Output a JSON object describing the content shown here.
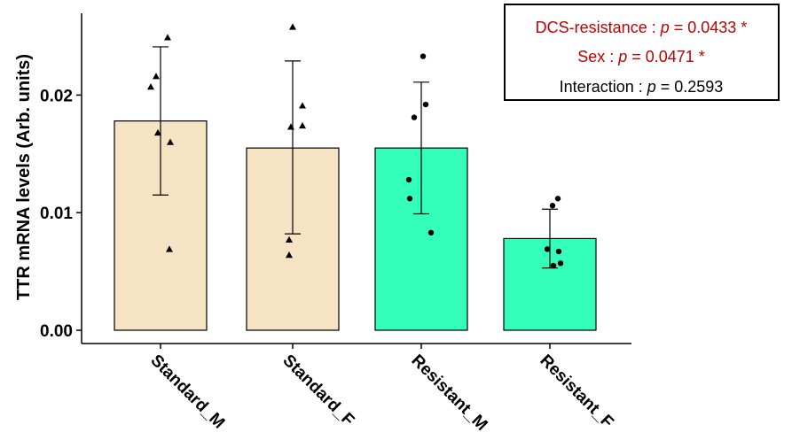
{
  "chart_data": {
    "type": "bar",
    "title": "",
    "xlabel": "",
    "ylabel": "TTR mRNA levels (Arb. units)",
    "ylim": [
      0,
      0.027
    ],
    "yticks": [
      "0.00",
      "0.01",
      "0.02"
    ],
    "ytick_values": [
      0,
      0.01,
      0.02
    ],
    "categories": [
      "Standard_M",
      "Standard_F",
      "Resistant_M",
      "Resistant_F"
    ],
    "values": [
      0.0178,
      0.0155,
      0.0155,
      0.0078
    ],
    "error_low": [
      0.0115,
      0.0082,
      0.0099,
      0.0053
    ],
    "error_high": [
      0.0241,
      0.0229,
      0.0211,
      0.0103
    ],
    "bar_colors": [
      "#f5e3c3",
      "#f5e3c3",
      "#33ffbb",
      "#33ffbb"
    ],
    "point_shapes": [
      "triangle",
      "triangle",
      "circle",
      "circle"
    ],
    "points": [
      [
        0.0249,
        0.0216,
        0.0207,
        0.0168,
        0.016,
        0.0069
      ],
      [
        0.0258,
        0.0191,
        0.0174,
        0.0173,
        0.0077,
        0.0064
      ],
      [
        0.0233,
        0.0192,
        0.0181,
        0.0128,
        0.0112,
        0.0083
      ],
      [
        0.0112,
        0.0106,
        0.0069,
        0.0067,
        0.0057,
        0.0055
      ]
    ],
    "grid": false,
    "stats_box": {
      "lines": [
        {
          "label": "DCS-resistance : ",
          "p_symbol": "p",
          "value": " = 0.0433 *",
          "color": "#c00000"
        },
        {
          "label": "Sex : ",
          "p_symbol": "p",
          "value": " = 0.0471 *",
          "color": "#c00000"
        },
        {
          "label": "Interaction : ",
          "p_symbol": "p",
          "value": " = 0.2593",
          "color": "#000000"
        }
      ]
    }
  }
}
